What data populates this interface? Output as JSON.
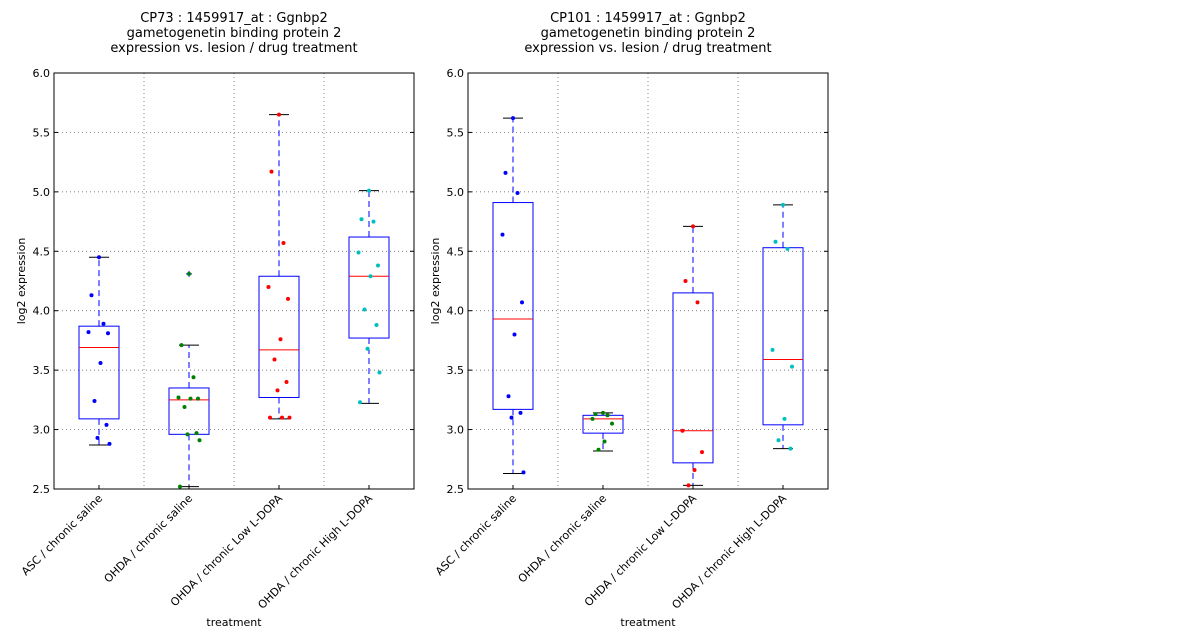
{
  "chart_data": [
    {
      "type": "boxplot",
      "title": [
        "CP73 : 1459917_at : Ggnbp2",
        "gametogenetin binding protein 2",
        "expression vs. lesion / drug treatment"
      ],
      "xlabel": "treatment",
      "ylabel": "log2 expression",
      "ylim": [
        2.5,
        6.0
      ],
      "yticks": [
        "2.5",
        "3.0",
        "3.5",
        "4.0",
        "4.5",
        "5.0",
        "5.5",
        "6.0"
      ],
      "grid": true,
      "categories": [
        "ASC / chronic saline",
        "OHDA / chronic saline",
        "OHDA / chronic Low L-DOPA",
        "OHDA / chronic High L-DOPA"
      ],
      "boxes": [
        {
          "q1": 3.09,
          "median": 3.69,
          "q3": 3.87,
          "whisker_low": 2.87,
          "whisker_high": 4.45,
          "outliers": [],
          "color": "#0000ff",
          "points": [
            4.45,
            4.13,
            3.89,
            3.82,
            3.81,
            3.56,
            3.24,
            3.04,
            2.93,
            2.88
          ]
        },
        {
          "q1": 2.96,
          "median": 3.25,
          "q3": 3.35,
          "whisker_low": 2.52,
          "whisker_high": 3.71,
          "outliers": [
            4.31
          ],
          "color": "#008000",
          "points": [
            4.31,
            3.71,
            3.44,
            3.27,
            3.26,
            3.26,
            3.19,
            2.97,
            2.96,
            2.91,
            2.52
          ]
        },
        {
          "q1": 3.27,
          "median": 3.67,
          "q3": 4.29,
          "whisker_low": 3.09,
          "whisker_high": 5.65,
          "outliers": [],
          "color": "#ff0000",
          "points": [
            5.65,
            5.17,
            4.57,
            4.2,
            4.1,
            3.76,
            3.59,
            3.4,
            3.33,
            3.1,
            3.1,
            3.1
          ]
        },
        {
          "q1": 3.77,
          "median": 4.29,
          "q3": 4.62,
          "whisker_low": 3.22,
          "whisker_high": 5.01,
          "outliers": [],
          "color": "#00bfbf",
          "points": [
            5.01,
            4.77,
            4.75,
            4.49,
            4.38,
            4.29,
            4.01,
            3.88,
            3.68,
            3.48,
            3.23
          ]
        }
      ]
    },
    {
      "type": "boxplot",
      "title": [
        "CP101 : 1459917_at : Ggnbp2",
        "gametogenetin binding protein 2",
        "expression vs. lesion / drug treatment"
      ],
      "xlabel": "treatment",
      "ylabel": "log2 expression",
      "ylim": [
        2.5,
        6.0
      ],
      "yticks": [
        "2.5",
        "3.0",
        "3.5",
        "4.0",
        "4.5",
        "5.0",
        "5.5",
        "6.0"
      ],
      "grid": true,
      "categories": [
        "ASC / chronic saline",
        "OHDA / chronic saline",
        "OHDA / chronic Low L-DOPA",
        "OHDA / chronic High L-DOPA"
      ],
      "boxes": [
        {
          "q1": 3.17,
          "median": 3.93,
          "q3": 4.91,
          "whisker_low": 2.63,
          "whisker_high": 5.62,
          "outliers": [],
          "color": "#0000ff",
          "points": [
            5.62,
            5.16,
            4.99,
            4.64,
            4.07,
            3.8,
            3.28,
            3.14,
            3.1,
            2.64
          ]
        },
        {
          "q1": 2.97,
          "median": 3.09,
          "q3": 3.12,
          "whisker_low": 2.82,
          "whisker_high": 3.14,
          "outliers": [],
          "color": "#008000",
          "points": [
            3.14,
            3.13,
            3.12,
            3.09,
            3.05,
            2.9,
            2.83
          ]
        },
        {
          "q1": 2.72,
          "median": 2.99,
          "q3": 4.15,
          "whisker_low": 2.53,
          "whisker_high": 4.71,
          "outliers": [],
          "color": "#ff0000",
          "points": [
            4.71,
            4.25,
            4.07,
            2.99,
            2.81,
            2.66,
            2.53
          ]
        },
        {
          "q1": 3.04,
          "median": 3.59,
          "q3": 4.53,
          "whisker_low": 2.84,
          "whisker_high": 4.89,
          "outliers": [],
          "color": "#00bfbf",
          "points": [
            4.89,
            4.58,
            4.52,
            3.67,
            3.53,
            3.09,
            2.91,
            2.84
          ]
        }
      ]
    }
  ]
}
